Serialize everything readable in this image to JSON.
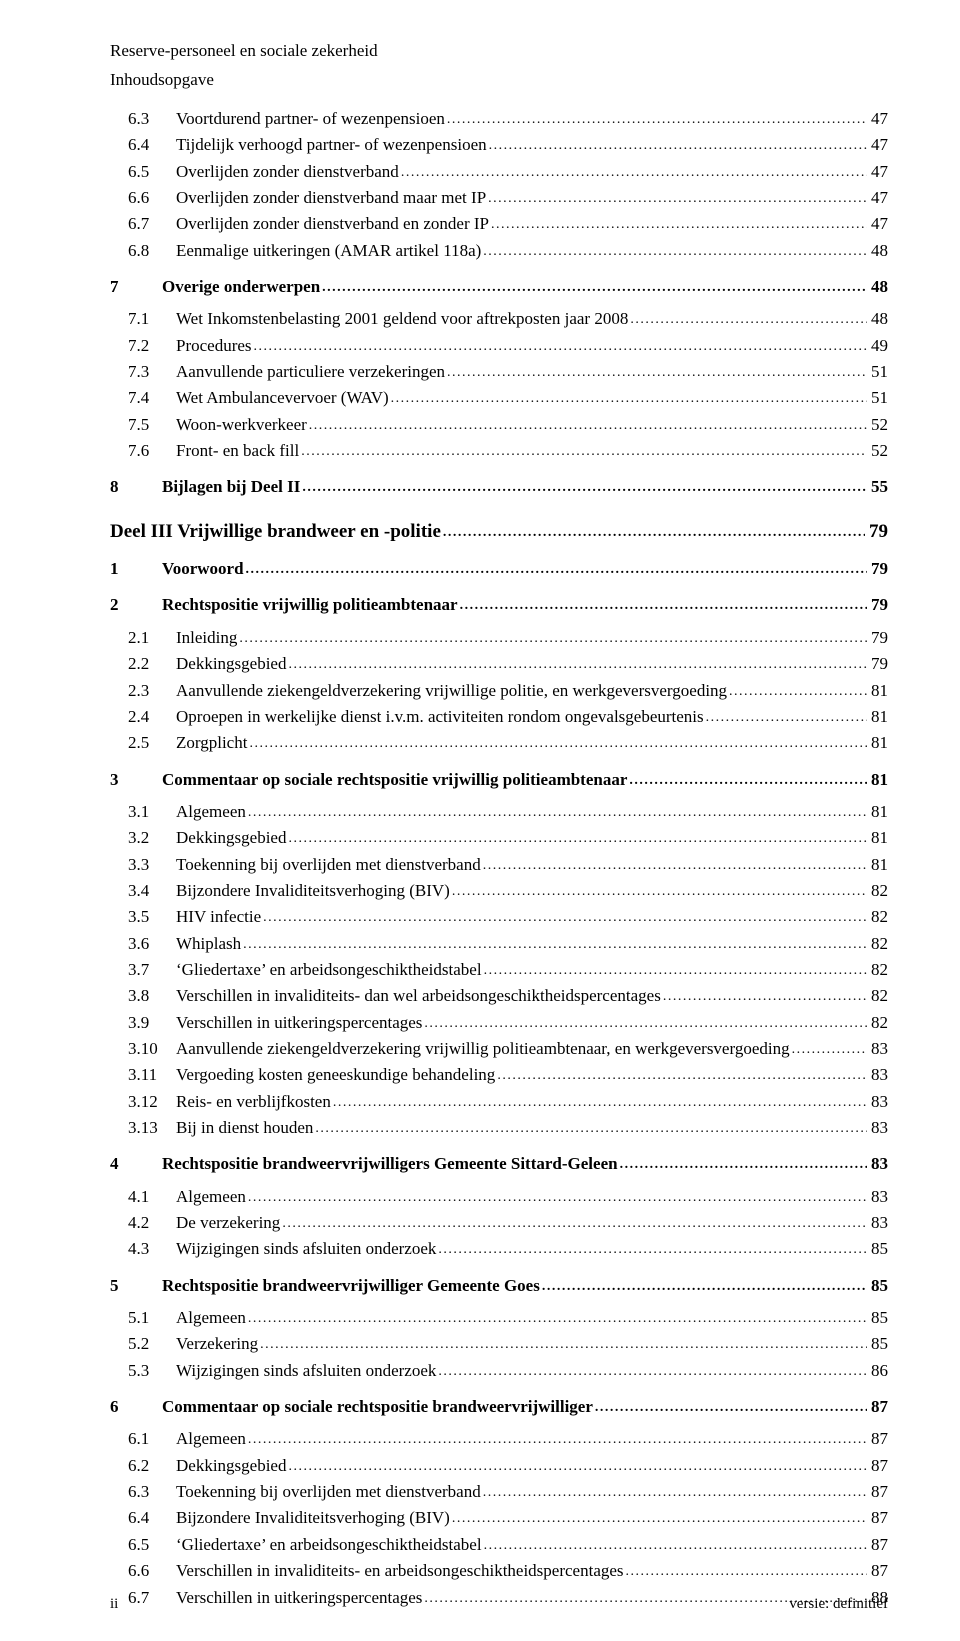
{
  "header": {
    "line1": "Reserve-personeel en sociale zekerheid",
    "line2": "Inhoudsopgave"
  },
  "rows": [
    {
      "lvl": 2,
      "num": "6.3",
      "txt": "Voortdurend partner- of wezenpensioen",
      "pg": "47"
    },
    {
      "lvl": 2,
      "num": "6.4",
      "txt": "Tijdelijk verhoogd partner- of wezenpensioen",
      "pg": "47"
    },
    {
      "lvl": 2,
      "num": "6.5",
      "txt": "Overlijden zonder dienstverband",
      "pg": "47"
    },
    {
      "lvl": 2,
      "num": "6.6",
      "txt": "Overlijden zonder dienstverband maar met IP",
      "pg": "47"
    },
    {
      "lvl": 2,
      "num": "6.7",
      "txt": "Overlijden zonder dienstverband en zonder IP",
      "pg": "47"
    },
    {
      "lvl": 2,
      "num": "6.8",
      "txt": "Eenmalige uitkeringen (AMAR artikel 118a)",
      "pg": "48"
    },
    {
      "lvl": 1,
      "num": "7",
      "txt": "Overige onderwerpen",
      "pg": "48",
      "gap": "m"
    },
    {
      "lvl": 2,
      "num": "7.1",
      "txt": "Wet Inkomstenbelasting 2001 geldend voor aftrekposten jaar 2008",
      "pg": "48",
      "gap": "s"
    },
    {
      "lvl": 2,
      "num": "7.2",
      "txt": "Procedures",
      "pg": "49"
    },
    {
      "lvl": 2,
      "num": "7.3",
      "txt": "Aanvullende particuliere verzekeringen",
      "pg": "51"
    },
    {
      "lvl": 2,
      "num": "7.4",
      "txt": "Wet Ambulancevervoer (WAV)",
      "pg": "51"
    },
    {
      "lvl": 2,
      "num": "7.5",
      "txt": "Woon-werkverkeer",
      "pg": "52"
    },
    {
      "lvl": 2,
      "num": "7.6",
      "txt": "Front- en back fill",
      "pg": "52"
    },
    {
      "lvl": 1,
      "num": "8",
      "txt": "Bijlagen bij Deel II",
      "pg": "55",
      "gap": "m"
    },
    {
      "lvl": 0,
      "num": "",
      "txt": "Deel III  Vrijwillige brandweer en -politie",
      "pg": "79",
      "gap": "l"
    },
    {
      "lvl": 1,
      "num": "1",
      "txt": "Voorwoord",
      "pg": "79",
      "gap": "m"
    },
    {
      "lvl": 1,
      "num": "2",
      "txt": "Rechtspositie vrijwillig politieambtenaar",
      "pg": "79",
      "gap": "m"
    },
    {
      "lvl": 2,
      "num": "2.1",
      "txt": "Inleiding",
      "pg": "79",
      "gap": "s"
    },
    {
      "lvl": 2,
      "num": "2.2",
      "txt": "Dekkingsgebied",
      "pg": "79"
    },
    {
      "lvl": 2,
      "num": "2.3",
      "txt": "Aanvullende ziekengeldverzekering vrijwillige politie, en werkgeversvergoeding",
      "pg": "81"
    },
    {
      "lvl": 2,
      "num": "2.4",
      "txt": "Oproepen in werkelijke dienst i.v.m. activiteiten rondom ongevalsgebeurtenis",
      "pg": "81"
    },
    {
      "lvl": 2,
      "num": "2.5",
      "txt": "Zorgplicht",
      "pg": "81"
    },
    {
      "lvl": 1,
      "num": "3",
      "txt": "Commentaar op sociale rechtspositie vrijwillig politieambtenaar",
      "pg": "81",
      "gap": "m"
    },
    {
      "lvl": 2,
      "num": "3.1",
      "txt": "Algemeen",
      "pg": "81",
      "gap": "s"
    },
    {
      "lvl": 2,
      "num": "3.2",
      "txt": "Dekkingsgebied",
      "pg": "81"
    },
    {
      "lvl": 2,
      "num": "3.3",
      "txt": "Toekenning bij overlijden met dienstverband",
      "pg": "81"
    },
    {
      "lvl": 2,
      "num": "3.4",
      "txt": "Bijzondere Invaliditeitsverhoging (BIV)",
      "pg": "82"
    },
    {
      "lvl": 2,
      "num": "3.5",
      "txt": "HIV infectie",
      "pg": "82"
    },
    {
      "lvl": 2,
      "num": "3.6",
      "txt": "Whiplash",
      "pg": "82"
    },
    {
      "lvl": 2,
      "num": "3.7",
      "txt": "‘Gliedertaxe’ en arbeidsongeschiktheidstabel",
      "pg": "82"
    },
    {
      "lvl": 2,
      "num": "3.8",
      "txt": "Verschillen in invaliditeits- dan wel arbeidsongeschiktheidspercentages",
      "pg": "82"
    },
    {
      "lvl": 2,
      "num": "3.9",
      "txt": "Verschillen in uitkeringspercentages",
      "pg": "82"
    },
    {
      "lvl": 2,
      "num": "3.10",
      "txt": "Aanvullende ziekengeldverzekering vrijwillig politieambtenaar, en werkgeversvergoeding",
      "pg": "83"
    },
    {
      "lvl": 2,
      "num": "3.11",
      "txt": "Vergoeding kosten geneeskundige behandeling",
      "pg": "83"
    },
    {
      "lvl": 2,
      "num": "3.12",
      "txt": "Reis- en verblijfkosten",
      "pg": "83"
    },
    {
      "lvl": 2,
      "num": "3.13",
      "txt": "Bij in dienst houden",
      "pg": "83"
    },
    {
      "lvl": 1,
      "num": "4",
      "txt": "Rechtspositie brandweervrijwilligers Gemeente Sittard-Geleen",
      "pg": "83",
      "gap": "m"
    },
    {
      "lvl": 2,
      "num": "4.1",
      "txt": "Algemeen",
      "pg": "83",
      "gap": "s"
    },
    {
      "lvl": 2,
      "num": "4.2",
      "txt": "De verzekering",
      "pg": "83"
    },
    {
      "lvl": 2,
      "num": "4.3",
      "txt": "Wijzigingen sinds afsluiten onderzoek",
      "pg": "85"
    },
    {
      "lvl": 1,
      "num": "5",
      "txt": "Rechtspositie brandweervrijwilliger Gemeente Goes",
      "pg": "85",
      "gap": "m"
    },
    {
      "lvl": 2,
      "num": "5.1",
      "txt": "Algemeen",
      "pg": "85",
      "gap": "s"
    },
    {
      "lvl": 2,
      "num": "5.2",
      "txt": "Verzekering",
      "pg": "85"
    },
    {
      "lvl": 2,
      "num": "5.3",
      "txt": "Wijzigingen sinds afsluiten onderzoek",
      "pg": "86"
    },
    {
      "lvl": 1,
      "num": "6",
      "txt": "Commentaar op sociale rechtspositie brandweervrijwilliger",
      "pg": "87",
      "gap": "m"
    },
    {
      "lvl": 2,
      "num": "6.1",
      "txt": "Algemeen",
      "pg": "87",
      "gap": "s"
    },
    {
      "lvl": 2,
      "num": "6.2",
      "txt": "Dekkingsgebied",
      "pg": "87"
    },
    {
      "lvl": 2,
      "num": "6.3",
      "txt": "Toekenning bij overlijden met dienstverband",
      "pg": "87"
    },
    {
      "lvl": 2,
      "num": "6.4",
      "txt": "Bijzondere Invaliditeitsverhoging (BIV)",
      "pg": "87"
    },
    {
      "lvl": 2,
      "num": "6.5",
      "txt": "‘Gliedertaxe’ en arbeidsongeschiktheidstabel",
      "pg": "87"
    },
    {
      "lvl": 2,
      "num": "6.6",
      "txt": "Verschillen in invaliditeits- en arbeidsongeschiktheidspercentages",
      "pg": "87"
    },
    {
      "lvl": 2,
      "num": "6.7",
      "txt": "Verschillen in uitkeringspercentages",
      "pg": "88"
    }
  ],
  "footer": {
    "left": "ii",
    "right": "versie: definitief"
  }
}
